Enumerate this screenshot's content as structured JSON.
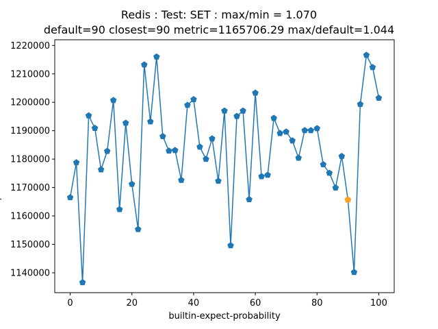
{
  "chart_data": {
    "type": "line",
    "title": "Redis : Test: SET : max/min = 1.070",
    "subtitle": "default=90 closest=90 metric=1165706.29 max/default=1.044",
    "xlabel": "builtin-expect-probability",
    "ylabel": "-",
    "xlim": [
      -5,
      105
    ],
    "ylim": [
      1133000,
      1222000
    ],
    "x_ticks": [
      0,
      20,
      40,
      60,
      80,
      100
    ],
    "y_ticks": [
      1140000,
      1150000,
      1160000,
      1170000,
      1180000,
      1190000,
      1200000,
      1210000,
      1220000
    ],
    "grid": false,
    "series": [
      {
        "color": "#1f77b4",
        "marker": "pentagon",
        "x": [
          0,
          2,
          4,
          6,
          8,
          10,
          12,
          14,
          16,
          18,
          20,
          22,
          24,
          26,
          28,
          30,
          32,
          34,
          36,
          38,
          40,
          42,
          44,
          46,
          48,
          50,
          52,
          54,
          56,
          58,
          60,
          62,
          64,
          66,
          68,
          70,
          72,
          74,
          76,
          78,
          80,
          82,
          84,
          86,
          88,
          90,
          92,
          94,
          96,
          98,
          100
        ],
        "values": [
          1166500,
          1178800,
          1136600,
          1195300,
          1190900,
          1176300,
          1182800,
          1200700,
          1162300,
          1192700,
          1171200,
          1155300,
          1213200,
          1193200,
          1216000,
          1188000,
          1182900,
          1183100,
          1172600,
          1199000,
          1201000,
          1184300,
          1180000,
          1187200,
          1172300,
          1197000,
          1149600,
          1195100,
          1197000,
          1165800,
          1203300,
          1173900,
          1174400,
          1194400,
          1189100,
          1189600,
          1186500,
          1180400,
          1190100,
          1190100,
          1190800,
          1178100,
          1175100,
          1169900,
          1181000,
          1165706.29,
          1140200,
          1199300,
          1216600,
          1212300,
          1201500
        ]
      }
    ],
    "highlight": {
      "x": 90,
      "value": 1165706.29,
      "color": "#ff9f1c"
    }
  }
}
